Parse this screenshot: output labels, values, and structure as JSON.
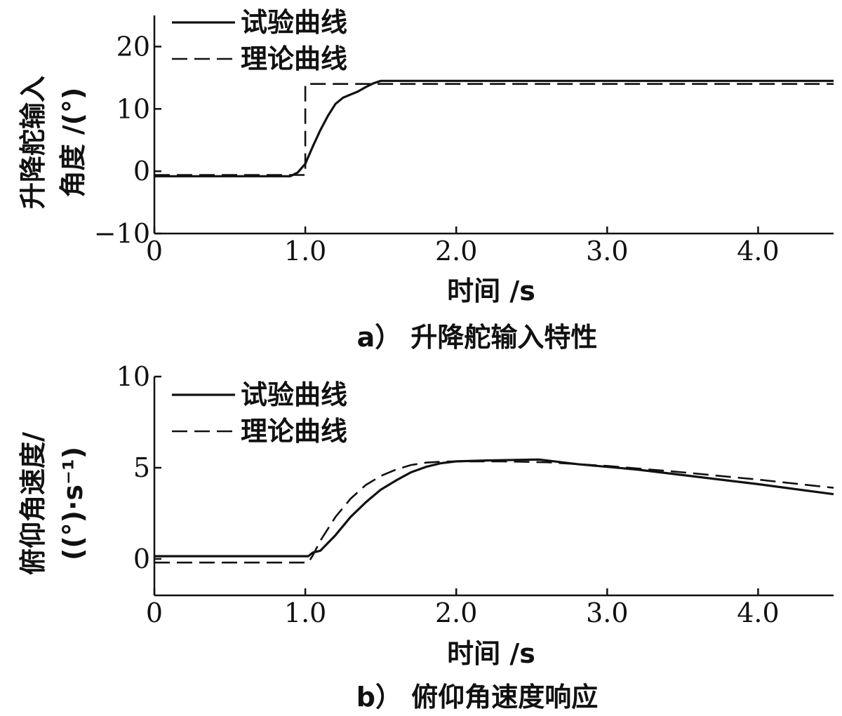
{
  "chart_data": [
    {
      "type": "line",
      "caption": "a） 升降舵输入特性",
      "xlabel": "时间 /s",
      "ylabel_lines": [
        "升降舵输入",
        "角度 /(°)"
      ],
      "xlim": [
        0,
        4.5
      ],
      "ylim": [
        -10,
        25
      ],
      "xticks": [
        0,
        1.0,
        2.0,
        3.0,
        4.0
      ],
      "xtick_labels": [
        "0",
        "1.0",
        "2.0",
        "3.0",
        "4.0"
      ],
      "yticks": [
        -10,
        0,
        10,
        20
      ],
      "ytick_labels": [
        "−10",
        "0",
        "10",
        "20"
      ],
      "grid": false,
      "legend_position": "top-left",
      "series": [
        {
          "name": "试验曲线",
          "style": "solid",
          "x": [
            0,
            0.9,
            0.95,
            1.0,
            1.05,
            1.1,
            1.15,
            1.2,
            1.25,
            1.3,
            1.35,
            1.4,
            1.45,
            1.5,
            2.0,
            3.0,
            4.0,
            4.5
          ],
          "y": [
            -0.8,
            -0.8,
            -0.2,
            1.2,
            4.0,
            6.6,
            8.9,
            10.8,
            11.8,
            12.3,
            12.8,
            13.5,
            14.1,
            14.5,
            14.5,
            14.5,
            14.5,
            14.5
          ]
        },
        {
          "name": "理论曲线",
          "style": "dashed",
          "x": [
            0,
            1.0,
            1.0,
            4.5
          ],
          "y": [
            -0.6,
            -0.6,
            14.0,
            14.0
          ]
        }
      ]
    },
    {
      "type": "line",
      "caption": "b） 俯仰角速度响应",
      "xlabel": "时间 /s",
      "ylabel_lines": [
        "俯仰角速度/",
        "((°)·s⁻¹)"
      ],
      "xlim": [
        0,
        4.5
      ],
      "ylim": [
        -2,
        10
      ],
      "xticks": [
        0,
        1.0,
        2.0,
        3.0,
        4.0
      ],
      "xtick_labels": [
        "0",
        "1.0",
        "2.0",
        "3.0",
        "4.0"
      ],
      "yticks": [
        0,
        5,
        10
      ],
      "ytick_labels": [
        "0",
        "5",
        "10"
      ],
      "grid": false,
      "legend_position": "top-left",
      "series": [
        {
          "name": "试验曲线",
          "style": "solid",
          "x": [
            0,
            1.02,
            1.05,
            1.1,
            1.2,
            1.3,
            1.4,
            1.5,
            1.6,
            1.7,
            1.8,
            1.9,
            2.0,
            2.2,
            2.4,
            2.55,
            2.8,
            3.2,
            3.6,
            4.0,
            4.5
          ],
          "y": [
            0.15,
            0.15,
            0.35,
            0.45,
            1.3,
            2.3,
            3.1,
            3.8,
            4.3,
            4.75,
            5.05,
            5.25,
            5.35,
            5.4,
            5.43,
            5.45,
            5.2,
            4.9,
            4.5,
            4.1,
            3.55
          ]
        },
        {
          "name": "理论曲线",
          "style": "dashed",
          "x": [
            0,
            1.02,
            1.05,
            1.1,
            1.2,
            1.3,
            1.4,
            1.5,
            1.6,
            1.7,
            1.8,
            1.9,
            2.0,
            2.3,
            2.6,
            3.0,
            3.5,
            4.0,
            4.5
          ],
          "y": [
            -0.2,
            -0.2,
            0.2,
            1.0,
            2.3,
            3.3,
            4.05,
            4.55,
            4.9,
            5.15,
            5.28,
            5.33,
            5.35,
            5.35,
            5.3,
            5.1,
            4.75,
            4.35,
            3.9
          ]
        }
      ]
    }
  ]
}
